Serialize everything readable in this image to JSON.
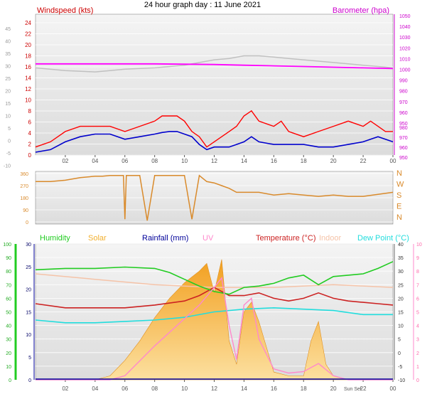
{
  "title": "24 hour graph day : 11 June 2021",
  "colors": {
    "wind": "#ff0000",
    "gust": "#ff0000",
    "avgwind": "#0000cc",
    "baro": "#ff00ff",
    "baro_prev": "#c0c0c0",
    "winddir": "#d98a2b",
    "humidity": "#22cc22",
    "solar": "#f2b030",
    "rain": "#000099",
    "uv": "#ff88cc",
    "temp": "#cc2222",
    "indoor": "#f5c3a8",
    "dew": "#22dddd"
  },
  "chart_data": [
    {
      "type": "line",
      "name": "wind-baro",
      "left_label": "Windspeed (kts)",
      "right_label": "Barometer (hpa)",
      "xticks": [
        "02",
        "04",
        "06",
        "08",
        "10",
        "12",
        "14",
        "16",
        "18",
        "20",
        "22",
        "00"
      ],
      "xrange_hours": [
        0,
        24
      ],
      "left_ticks_red": [
        "24",
        "22",
        "20",
        "18",
        "16",
        "14",
        "12",
        "10",
        "8",
        "6",
        "4",
        "2",
        "0"
      ],
      "left_ticks_grey": [
        "45",
        "40",
        "35",
        "30",
        "25",
        "20",
        "15",
        "10",
        "5",
        "0",
        "-5",
        "-10"
      ],
      "right_ticks": [
        "1050",
        "1040",
        "1030",
        "1020",
        "1010",
        "1000",
        "990",
        "980",
        "970",
        "960",
        "950"
      ],
      "right_ticks_lower": [
        "980",
        "970",
        "960",
        "950"
      ],
      "wind_range": [
        0,
        25
      ],
      "baro_range": [
        945,
        1050
      ],
      "series": [
        {
          "name": "gust",
          "hours": [
            0,
            1,
            1.5,
            2,
            3,
            4,
            5,
            6,
            7,
            8,
            8.5,
            9,
            9.5,
            10,
            10.5,
            11,
            11.5,
            12,
            13,
            13.5,
            14,
            14.5,
            15,
            16,
            16.5,
            17,
            18,
            19,
            20,
            21,
            22,
            22.5,
            23,
            23.5,
            24
          ],
          "values": [
            1,
            2,
            3,
            4,
            5,
            5,
            5,
            4,
            5,
            6,
            7,
            7,
            7,
            6,
            4,
            3,
            1,
            2,
            4,
            5,
            7,
            8,
            6,
            5,
            6,
            4,
            3,
            4,
            5,
            6,
            5,
            6,
            5,
            4,
            4
          ]
        },
        {
          "name": "avgwind",
          "hours": [
            0,
            1,
            2,
            3,
            4,
            5,
            6,
            7,
            8,
            8.5,
            9,
            9.5,
            10,
            10.5,
            11,
            11.5,
            12,
            13,
            13.5,
            14,
            14.5,
            15,
            16,
            17,
            18,
            19,
            20,
            21,
            22,
            22.5,
            23,
            24
          ],
          "values": [
            0,
            0.5,
            2,
            3,
            3.5,
            3.5,
            2.5,
            3,
            3.5,
            3.8,
            4,
            4,
            3.5,
            3,
            1.5,
            0.5,
            1,
            1,
            1.5,
            2,
            3,
            2,
            1.5,
            1.5,
            1.5,
            1,
            1,
            1.5,
            2,
            2.5,
            3,
            2
          ]
        },
        {
          "name": "barometer",
          "hours": [
            0,
            4,
            8,
            12,
            14,
            16,
            18,
            20,
            22,
            24
          ],
          "values": [
            1013,
            1013,
            1013,
            1012.5,
            1012,
            1011.5,
            1011,
            1010.5,
            1010,
            1009.5
          ]
        },
        {
          "name": "barometer-prev",
          "hours": [
            0,
            2,
            4,
            5,
            6,
            8,
            10,
            11,
            12,
            13,
            14,
            15,
            16,
            17,
            18,
            19,
            20,
            21,
            22,
            23,
            24
          ],
          "values": [
            1010,
            1008,
            1007,
            1008,
            1009,
            1010,
            1012,
            1014,
            1016,
            1017,
            1019,
            1019,
            1018,
            1017,
            1016,
            1015,
            1014,
            1013,
            1012,
            1011,
            1010
          ]
        }
      ]
    },
    {
      "type": "line",
      "name": "wind-direction",
      "left_ticks": [
        "360",
        "270",
        "180",
        "90",
        "0"
      ],
      "right_ticks": [
        "N",
        "W",
        "S",
        "E",
        "N"
      ],
      "yrange": [
        0,
        360
      ],
      "hours": [
        0,
        1,
        2,
        3,
        4,
        4.5,
        5,
        5.9,
        6,
        6.1,
        7,
        7.5,
        8,
        9,
        10,
        10.5,
        11,
        11.5,
        12,
        12.5,
        13,
        13.5,
        14,
        15,
        16,
        17,
        18,
        19,
        20,
        21,
        22,
        23,
        24
      ],
      "values": [
        300,
        300,
        310,
        330,
        340,
        340,
        345,
        345,
        20,
        345,
        345,
        10,
        345,
        345,
        345,
        20,
        345,
        300,
        290,
        270,
        250,
        220,
        220,
        220,
        200,
        210,
        200,
        190,
        200,
        190,
        190,
        205,
        220
      ]
    },
    {
      "type": "line",
      "name": "temp-humidity",
      "legend": [
        "Humidity",
        "Solar",
        "Rainfall (mm)",
        "UV",
        "Temperature (°C)",
        "Indoor",
        "Dew Point (°C)"
      ],
      "left1_ticks": [
        "100",
        "90",
        "80",
        "70",
        "60",
        "50",
        "40",
        "30",
        "20",
        "10",
        "0"
      ],
      "left2_ticks": [
        "30",
        "25",
        "20",
        "15",
        "10",
        "5",
        "0"
      ],
      "right1_ticks": [
        "40",
        "35",
        "30",
        "25",
        "20",
        "15",
        "10",
        "5",
        "0",
        "-5",
        "-10"
      ],
      "right2_ticks": [
        "10",
        "9",
        "8",
        "7",
        "6",
        "5",
        "4",
        "3",
        "2",
        "1",
        "0"
      ],
      "xticks": [
        "02",
        "04",
        "06",
        "08",
        "10",
        "12",
        "14",
        "16",
        "18",
        "20",
        "22",
        "00"
      ],
      "sun_label": "Sun Set",
      "series": [
        {
          "name": "humidity",
          "hours": [
            0,
            2,
            4,
            6,
            8,
            9,
            10,
            11,
            12,
            13,
            14,
            15,
            16,
            17,
            18,
            19,
            20,
            21,
            22,
            23,
            24
          ],
          "values": [
            81,
            82,
            82,
            83,
            82,
            79,
            74,
            69,
            65,
            63,
            68,
            69,
            71,
            75,
            77,
            70,
            76,
            77,
            78,
            82,
            87
          ]
        },
        {
          "name": "temperature",
          "hours": [
            0,
            2,
            4,
            6,
            8,
            10,
            11,
            12,
            13,
            14,
            15,
            16,
            17,
            18,
            19,
            20,
            21,
            22,
            23,
            24
          ],
          "values": [
            18,
            16.5,
            16.5,
            16.5,
            17.5,
            19,
            21,
            24,
            21,
            21,
            22,
            20,
            19,
            20,
            22,
            20,
            19,
            18.5,
            18,
            17.5
          ]
        },
        {
          "name": "dewpoint",
          "hours": [
            0,
            2,
            4,
            6,
            8,
            10,
            12,
            14,
            16,
            18,
            20,
            22,
            24
          ],
          "values": [
            12,
            11,
            11,
            11.5,
            12,
            13,
            15,
            16,
            16.5,
            16,
            15.5,
            14,
            14
          ]
        },
        {
          "name": "indoor",
          "hours": [
            0,
            4,
            8,
            12,
            16,
            20,
            24
          ],
          "values": [
            29,
            27,
            25,
            24,
            24,
            25,
            24
          ]
        },
        {
          "name": "solar",
          "hours": [
            0,
            4,
            5,
            6,
            7,
            8,
            9,
            10,
            11,
            11.5,
            12,
            12.5,
            13,
            13.5,
            14,
            14.5,
            15,
            16,
            17,
            18,
            18.5,
            19,
            19.5,
            20,
            21,
            24
          ],
          "values": [
            0,
            0,
            20,
            100,
            200,
            320,
            420,
            500,
            560,
            600,
            450,
            620,
            200,
            80,
            350,
            400,
            300,
            40,
            20,
            20,
            200,
            300,
            80,
            20,
            0,
            0
          ]
        },
        {
          "name": "uv",
          "hours": [
            0,
            5,
            6,
            8,
            10,
            11,
            12,
            12.5,
            13,
            13.5,
            14,
            14.5,
            15,
            16,
            17,
            18,
            19,
            20,
            21,
            24
          ],
          "values": [
            0,
            0,
            0.3,
            2.5,
            4.5,
            5.5,
            6.8,
            7.5,
            4,
            1.5,
            5.5,
            6,
            3,
            0.8,
            0.5,
            0.6,
            1.2,
            0.3,
            0,
            0
          ]
        }
      ]
    }
  ]
}
